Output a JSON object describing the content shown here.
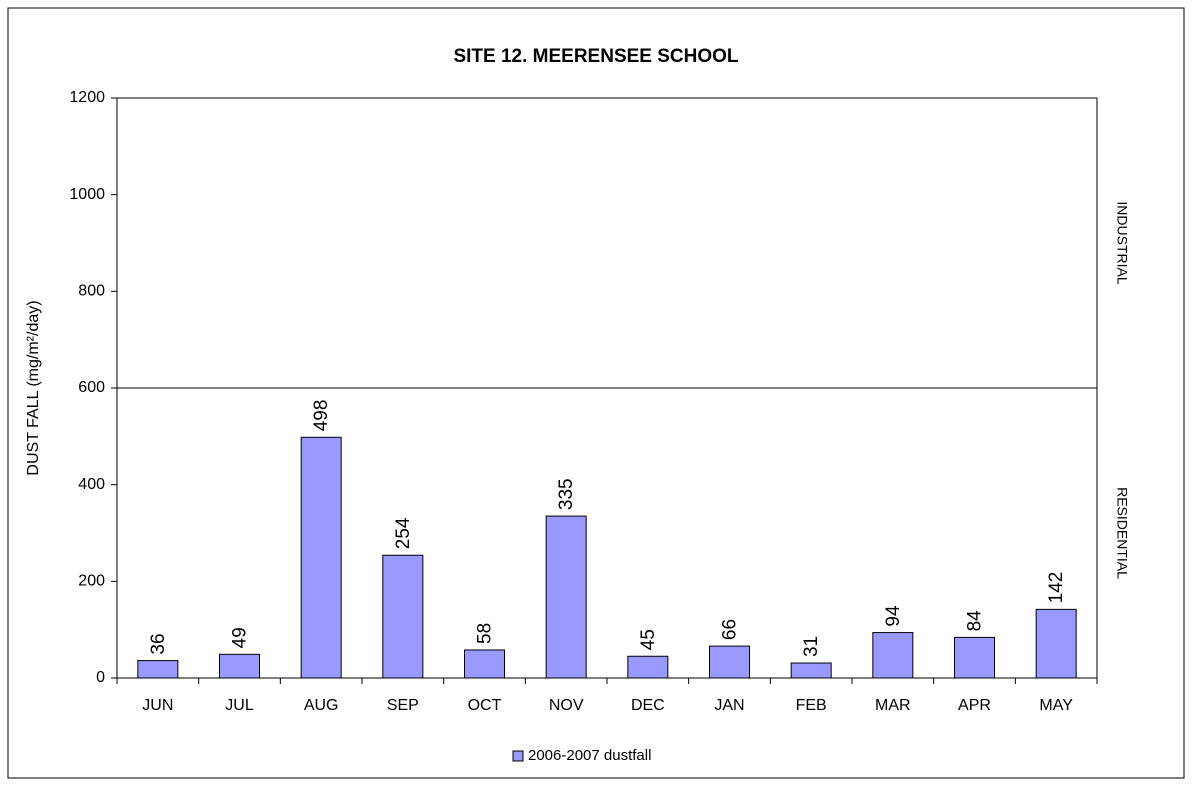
{
  "chart_data": {
    "type": "bar",
    "title": "SITE 12.  MEERENSEE SCHOOL",
    "y_label": "DUST FALL  (mg/m²/day)",
    "categories": [
      "JUN",
      "JUL",
      "AUG",
      "SEP",
      "OCT",
      "NOV",
      "DEC",
      "JAN",
      "FEB",
      "MAR",
      "APR",
      "MAY"
    ],
    "series": [
      {
        "name": "2006-2007 dustfall",
        "color": "#9999ff",
        "values": [
          36,
          49,
          498,
          254,
          58,
          335,
          45,
          66,
          31,
          94,
          84,
          142
        ]
      }
    ],
    "ylim": [
      0,
      1200
    ],
    "yticks": [
      0,
      200,
      400,
      600,
      800,
      1000,
      1200
    ],
    "reference_line": 600,
    "annotations": [
      "INDUSTRIAL",
      "RESIDENTIAL"
    ],
    "legend": "bottom"
  }
}
